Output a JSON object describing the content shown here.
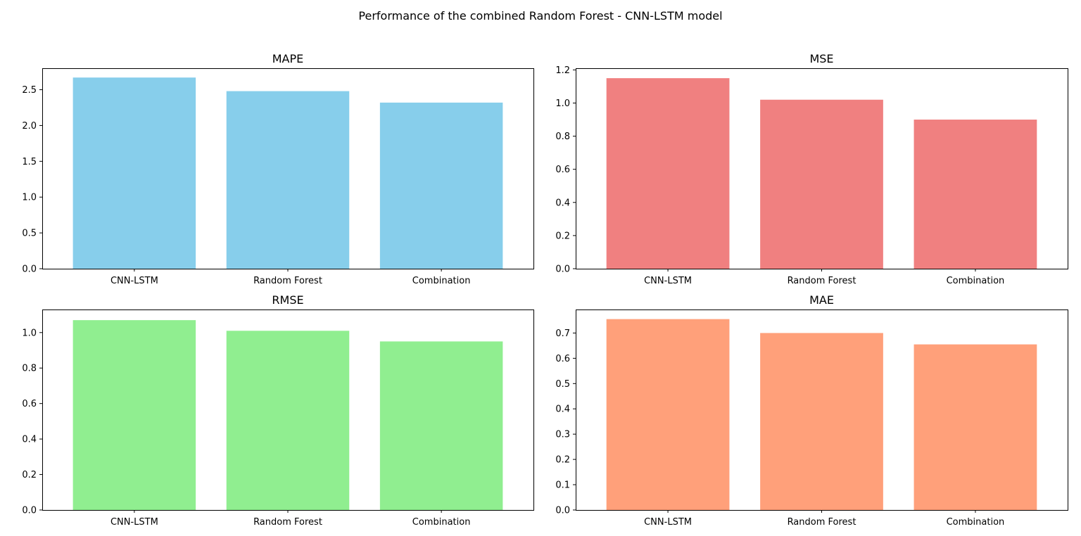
{
  "figure": {
    "suptitle": "Performance of the combined Random Forest - CNN-LSTM model"
  },
  "chart_data": [
    {
      "type": "bar",
      "title": "MAPE",
      "categories": [
        "CNN-LSTM",
        "Random Forest",
        "Combination"
      ],
      "values": [
        2.67,
        2.48,
        2.32
      ],
      "ylim": [
        0,
        2.8
      ],
      "yticks": [
        0.0,
        0.5,
        1.0,
        1.5,
        2.0,
        2.5
      ],
      "ytick_decimals": 1,
      "color": "#87CEEB",
      "xlabel": "",
      "ylabel": "",
      "grid": false,
      "legend": false
    },
    {
      "type": "bar",
      "title": "MSE",
      "categories": [
        "CNN-LSTM",
        "Random Forest",
        "Combination"
      ],
      "values": [
        1.15,
        1.02,
        0.9
      ],
      "ylim": [
        0,
        1.21
      ],
      "yticks": [
        0.0,
        0.2,
        0.4,
        0.6,
        0.8,
        1.0,
        1.2
      ],
      "ytick_decimals": 1,
      "color": "#F08080",
      "xlabel": "",
      "ylabel": "",
      "grid": false,
      "legend": false
    },
    {
      "type": "bar",
      "title": "RMSE",
      "categories": [
        "CNN-LSTM",
        "Random Forest",
        "Combination"
      ],
      "values": [
        1.07,
        1.01,
        0.95
      ],
      "ylim": [
        0,
        1.13
      ],
      "yticks": [
        0.0,
        0.2,
        0.4,
        0.6,
        0.8,
        1.0
      ],
      "ytick_decimals": 1,
      "color": "#90EE90",
      "xlabel": "",
      "ylabel": "",
      "grid": false,
      "legend": false
    },
    {
      "type": "bar",
      "title": "MAE",
      "categories": [
        "CNN-LSTM",
        "Random Forest",
        "Combination"
      ],
      "values": [
        0.755,
        0.7,
        0.655
      ],
      "ylim": [
        0,
        0.793
      ],
      "yticks": [
        0.0,
        0.1,
        0.2,
        0.3,
        0.4,
        0.5,
        0.6,
        0.7
      ],
      "ytick_decimals": 1,
      "color": "#FFA07A",
      "xlabel": "",
      "ylabel": "",
      "grid": false,
      "legend": false
    }
  ]
}
